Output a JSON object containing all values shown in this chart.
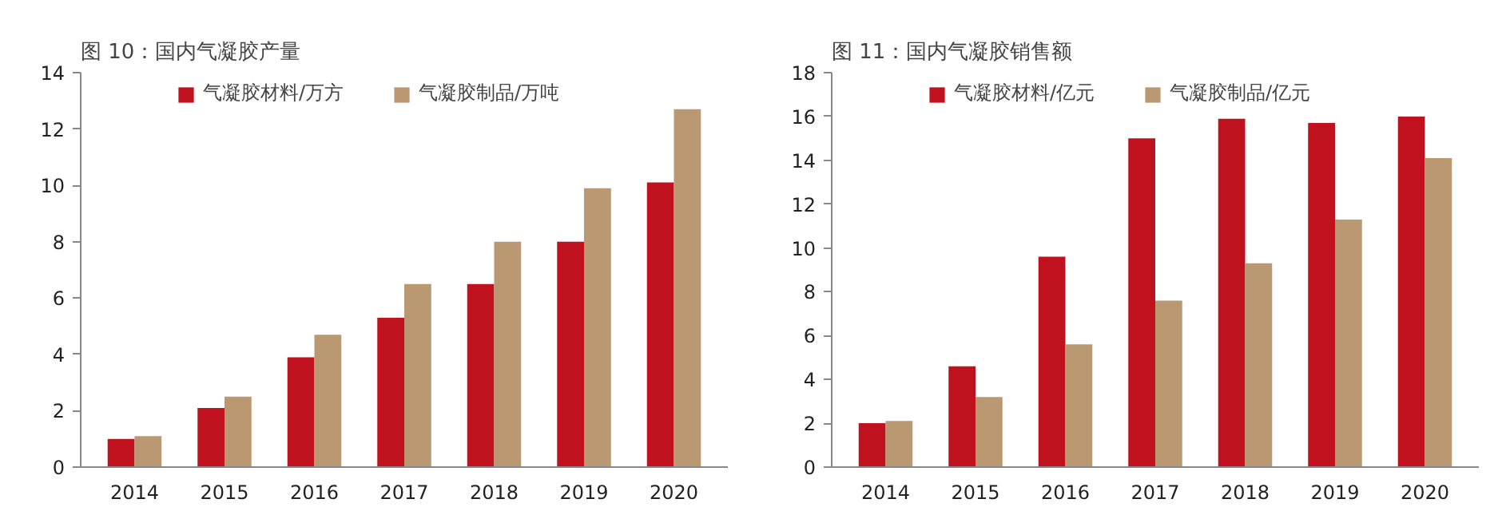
{
  "chart_data": [
    {
      "type": "bar",
      "title": "图 10：国内气凝胶产量",
      "categories": [
        "2014",
        "2015",
        "2016",
        "2017",
        "2018",
        "2019",
        "2020"
      ],
      "series": [
        {
          "name": "气凝胶材料/万方",
          "color": "#c0111f",
          "values": [
            1.0,
            2.1,
            3.9,
            5.3,
            6.5,
            8.0,
            10.1
          ]
        },
        {
          "name": "气凝胶制品/万吨",
          "color": "#b99872",
          "values": [
            1.1,
            2.5,
            4.7,
            6.5,
            8.0,
            9.9,
            12.7
          ]
        }
      ],
      "ylim": [
        0,
        14
      ],
      "yticks": [
        0,
        2,
        4,
        6,
        8,
        10,
        12,
        14
      ],
      "grid": false,
      "legend": "top"
    },
    {
      "type": "bar",
      "title": "图 11：国内气凝胶销售额",
      "categories": [
        "2014",
        "2015",
        "2016",
        "2017",
        "2018",
        "2019",
        "2020"
      ],
      "series": [
        {
          "name": "气凝胶材料/亿元",
          "color": "#c0111f",
          "values": [
            2.0,
            4.6,
            9.6,
            15.0,
            15.9,
            15.7,
            16.0
          ]
        },
        {
          "name": "气凝胶制品/亿元",
          "color": "#b99872",
          "values": [
            2.1,
            3.2,
            5.6,
            7.6,
            9.3,
            11.3,
            14.1
          ]
        }
      ],
      "ylim": [
        0,
        18
      ],
      "yticks": [
        0,
        2,
        4,
        6,
        8,
        10,
        12,
        14,
        16,
        18
      ],
      "grid": false,
      "legend": "top"
    }
  ]
}
